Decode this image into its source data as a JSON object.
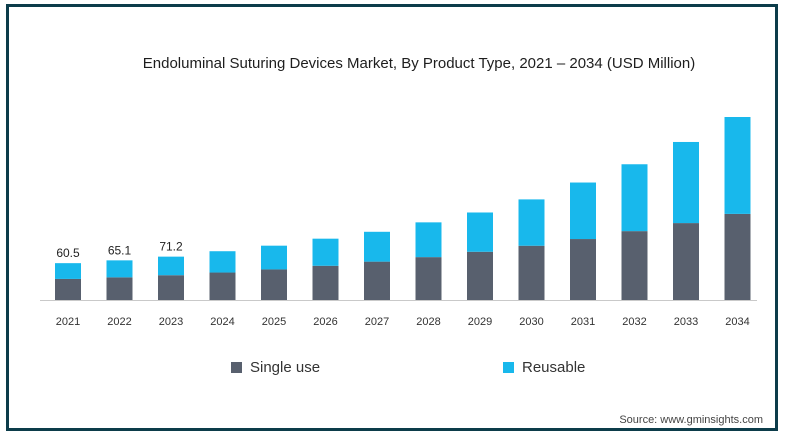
{
  "chart_data": {
    "type": "bar",
    "stacked": true,
    "title": "Endoluminal Suturing Devices Market, By Product Type, 2021 – 2034 (USD Million)",
    "categories": [
      "2021",
      "2022",
      "2023",
      "2024",
      "2025",
      "2026",
      "2027",
      "2028",
      "2029",
      "2030",
      "2031",
      "2032",
      "2033",
      "2034"
    ],
    "series": [
      {
        "name": "Single use",
        "color": "#58606e",
        "values": [
          34.6,
          37.2,
          40.7,
          45.1,
          50.2,
          56.2,
          63.0,
          70.4,
          79.2,
          89.1,
          100.1,
          113.1,
          126.3,
          141.4
        ]
      },
      {
        "name": "Reusable",
        "color": "#18b8ec",
        "values": [
          25.9,
          27.9,
          30.5,
          35.0,
          39.0,
          44.5,
          49.0,
          57.1,
          64.5,
          76.1,
          92.8,
          109.8,
          133.2,
          159.1
        ]
      }
    ],
    "data_labels": [
      "60.5",
      "65.1",
      "71.2"
    ],
    "ylim": [
      0,
      320
    ],
    "grid": false,
    "legend_position": "bottom"
  },
  "source_text": "Source: www.gminsights.com"
}
